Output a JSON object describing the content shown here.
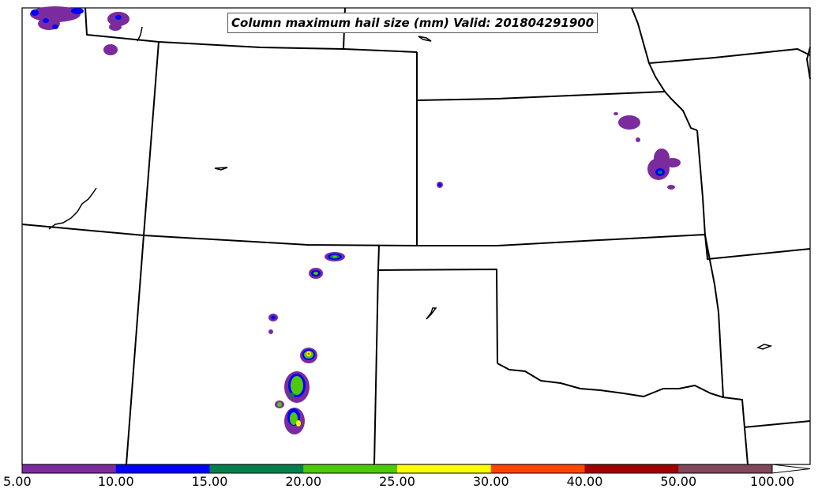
{
  "title": "Column maximum hail size (mm) Valid: 201804291900",
  "colorbar": {
    "tick_labels": [
      "5.00",
      "10.00",
      "15.00",
      "20.00",
      "25.00",
      "30.00",
      "40.00",
      "50.00",
      "100.00"
    ],
    "colors": [
      "#7b2b9e",
      "#0000ff",
      "#00804a",
      "#4ec90a",
      "#ffff00",
      "#ff4500",
      "#a00000",
      "#80485a"
    ],
    "extend_color": "#ffffff"
  }
}
